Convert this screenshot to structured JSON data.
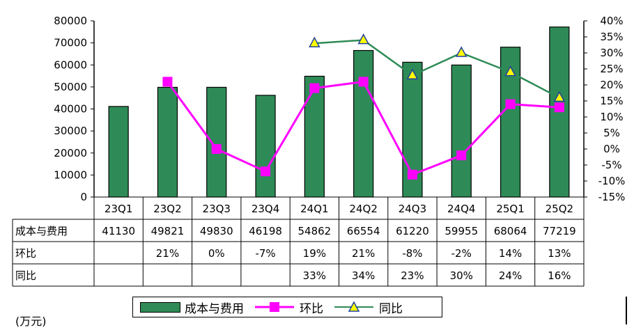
{
  "chart_data": {
    "type": "bar",
    "categories": [
      "23Q1",
      "23Q2",
      "23Q3",
      "23Q4",
      "24Q1",
      "24Q2",
      "24Q3",
      "24Q4",
      "25Q1",
      "25Q2"
    ],
    "series": [
      {
        "name": "成本与费用",
        "type": "bar",
        "axis": "left",
        "color": "#2e8b57",
        "values": [
          41130,
          49821,
          49830,
          46198,
          54862,
          66554,
          61220,
          59955,
          68064,
          77219
        ]
      },
      {
        "name": "环比",
        "type": "line",
        "axis": "right",
        "color": "#ff00ff",
        "values": [
          null,
          21,
          0,
          -7,
          19,
          21,
          -8,
          -2,
          14,
          13
        ]
      },
      {
        "name": "同比",
        "type": "line",
        "axis": "right",
        "color": "#2e8b57",
        "values": [
          null,
          null,
          null,
          null,
          33,
          34,
          23,
          30,
          24,
          16
        ]
      }
    ],
    "left_axis": {
      "min": 0,
      "max": 80000,
      "step": 10000,
      "ticks": [
        "0",
        "10000",
        "20000",
        "30000",
        "40000",
        "50000",
        "60000",
        "70000",
        "80000"
      ]
    },
    "right_axis": {
      "min": -15,
      "max": 40,
      "step": 5,
      "ticks": [
        "-15%",
        "-10%",
        "-5%",
        "0%",
        "5%",
        "10%",
        "15%",
        "20%",
        "25%",
        "30%",
        "35%",
        "40%"
      ]
    },
    "table": {
      "rows": [
        {
          "label": "成本与费用",
          "cells": [
            "41130",
            "49821",
            "49830",
            "46198",
            "54862",
            "66554",
            "61220",
            "59955",
            "68064",
            "77219"
          ]
        },
        {
          "label": "环比",
          "cells": [
            "",
            "21%",
            "0%",
            "-7%",
            "19%",
            "21%",
            "-8%",
            "-2%",
            "14%",
            "13%"
          ]
        },
        {
          "label": "同比",
          "cells": [
            "",
            "",
            "",
            "",
            "33%",
            "34%",
            "23%",
            "30%",
            "24%",
            "16%"
          ]
        }
      ]
    },
    "legend": [
      "成本与费用",
      "环比",
      "同比"
    ],
    "unit": "(万元)"
  }
}
